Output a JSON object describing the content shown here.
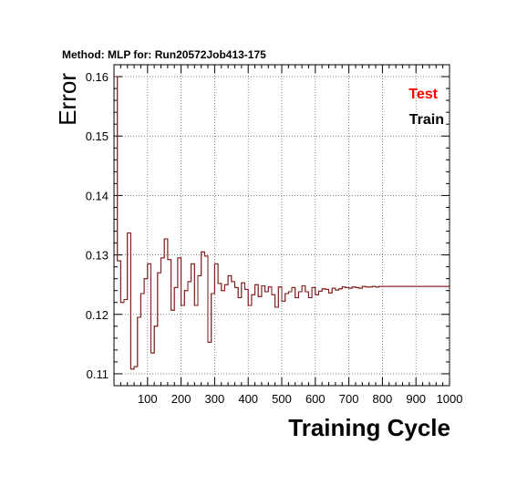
{
  "chart_data": {
    "type": "line",
    "title": "Method: MLP for: Run20572Job413-175",
    "xlabel": "Training Cycle",
    "ylabel": "Error",
    "xlim": [
      0,
      1000
    ],
    "ylim": [
      0.108,
      0.162
    ],
    "xticks": [
      100,
      200,
      300,
      400,
      500,
      600,
      700,
      800,
      900,
      1000
    ],
    "yticks": [
      0.11,
      0.12,
      0.13,
      0.14,
      0.15,
      0.16
    ],
    "grid": true,
    "legend_position": "top-right",
    "series": [
      {
        "name": "Test",
        "color": "#ff0000",
        "x": [
          0,
          10,
          20,
          30,
          40,
          50,
          60,
          70,
          80,
          90,
          100,
          110,
          120,
          130,
          140,
          150,
          160,
          170,
          180,
          190,
          200,
          210,
          220,
          230,
          240,
          250,
          260,
          270,
          280,
          290,
          300,
          310,
          320,
          330,
          340,
          350,
          360,
          370,
          380,
          390,
          400,
          410,
          420,
          430,
          440,
          450,
          460,
          470,
          480,
          490,
          500,
          510,
          520,
          530,
          540,
          550,
          560,
          570,
          580,
          590,
          600,
          610,
          620,
          630,
          640,
          650,
          660,
          670,
          680,
          690,
          700,
          710,
          720,
          730,
          740,
          750,
          760,
          770,
          780,
          790,
          800,
          810,
          820,
          830,
          840,
          850,
          860,
          870,
          880,
          890,
          900,
          910,
          920,
          930,
          940,
          950,
          960,
          970,
          980,
          990,
          1000
        ],
        "y": [
          0.16,
          0.129,
          0.122,
          0.1225,
          0.1337,
          0.1108,
          0.1112,
          0.1195,
          0.1235,
          0.126,
          0.1285,
          0.1135,
          0.118,
          0.127,
          0.1295,
          0.1327,
          0.1292,
          0.1207,
          0.1245,
          0.1295,
          0.1215,
          0.124,
          0.1255,
          0.1285,
          0.1215,
          0.1265,
          0.1305,
          0.1298,
          0.1153,
          0.1235,
          0.1285,
          0.1252,
          0.124,
          0.125,
          0.1265,
          0.1255,
          0.1245,
          0.1228,
          0.1253,
          0.1242,
          0.1215,
          0.1233,
          0.125,
          0.123,
          0.1248,
          0.1238,
          0.1246,
          0.1233,
          0.1212,
          0.1246,
          0.1222,
          0.1235,
          0.1238,
          0.1245,
          0.1228,
          0.1238,
          0.1248,
          0.1238,
          0.1228,
          0.1245,
          0.1233,
          0.1239,
          0.1243,
          0.1242,
          0.1236,
          0.1244,
          0.1241,
          0.1243,
          0.1246,
          0.1245,
          0.1244,
          0.1246,
          0.1245,
          0.1244,
          0.1247,
          0.1246,
          0.1246,
          0.1247,
          0.1246,
          0.1247,
          0.1247,
          0.1247,
          0.1247,
          0.1247,
          0.1247,
          0.1247,
          0.1247,
          0.1247,
          0.1247,
          0.1247,
          0.1247,
          0.1247,
          0.1247,
          0.1247,
          0.1247,
          0.1247,
          0.1247,
          0.1247,
          0.1247,
          0.1247,
          0.1247
        ]
      },
      {
        "name": "Train",
        "color": "#000000",
        "x": [
          0,
          10,
          20,
          30,
          40,
          50,
          60,
          70,
          80,
          90,
          100,
          110,
          120,
          130,
          140,
          150,
          160,
          170,
          180,
          190,
          200,
          210,
          220,
          230,
          240,
          250,
          260,
          270,
          280,
          290,
          300,
          310,
          320,
          330,
          340,
          350,
          360,
          370,
          380,
          390,
          400,
          410,
          420,
          430,
          440,
          450,
          460,
          470,
          480,
          490,
          500,
          510,
          520,
          530,
          540,
          550,
          560,
          570,
          580,
          590,
          600,
          610,
          620,
          630,
          640,
          650,
          660,
          670,
          680,
          690,
          700,
          710,
          720,
          730,
          740,
          750,
          760,
          770,
          780,
          790,
          800,
          810,
          820,
          830,
          840,
          850,
          860,
          870,
          880,
          890,
          900,
          910,
          920,
          930,
          940,
          950,
          960,
          970,
          980,
          990,
          1000
        ],
        "y": [
          0.16,
          0.129,
          0.122,
          0.1225,
          0.1337,
          0.1108,
          0.1112,
          0.1195,
          0.1235,
          0.126,
          0.1285,
          0.1135,
          0.118,
          0.127,
          0.1295,
          0.1327,
          0.1292,
          0.1207,
          0.1245,
          0.1295,
          0.1215,
          0.124,
          0.1255,
          0.1285,
          0.1215,
          0.1265,
          0.1305,
          0.1298,
          0.1153,
          0.1235,
          0.1285,
          0.1252,
          0.124,
          0.125,
          0.1265,
          0.1255,
          0.1245,
          0.1228,
          0.1253,
          0.1242,
          0.1215,
          0.1233,
          0.125,
          0.123,
          0.1248,
          0.1238,
          0.1246,
          0.1233,
          0.1212,
          0.1246,
          0.1222,
          0.1235,
          0.1238,
          0.1245,
          0.1228,
          0.1238,
          0.1248,
          0.1238,
          0.1228,
          0.1245,
          0.1233,
          0.1239,
          0.1243,
          0.1242,
          0.1236,
          0.1244,
          0.1241,
          0.1243,
          0.1246,
          0.1245,
          0.1244,
          0.1246,
          0.1245,
          0.1244,
          0.1247,
          0.1246,
          0.1246,
          0.1247,
          0.1246,
          0.1247,
          0.1247,
          0.1247,
          0.1247,
          0.1247,
          0.1247,
          0.1247,
          0.1247,
          0.1247,
          0.1247,
          0.1247,
          0.1247,
          0.1247,
          0.1247,
          0.1247,
          0.1247,
          0.1247,
          0.1247,
          0.1247,
          0.1247,
          0.1247,
          0.1247
        ]
      }
    ]
  }
}
